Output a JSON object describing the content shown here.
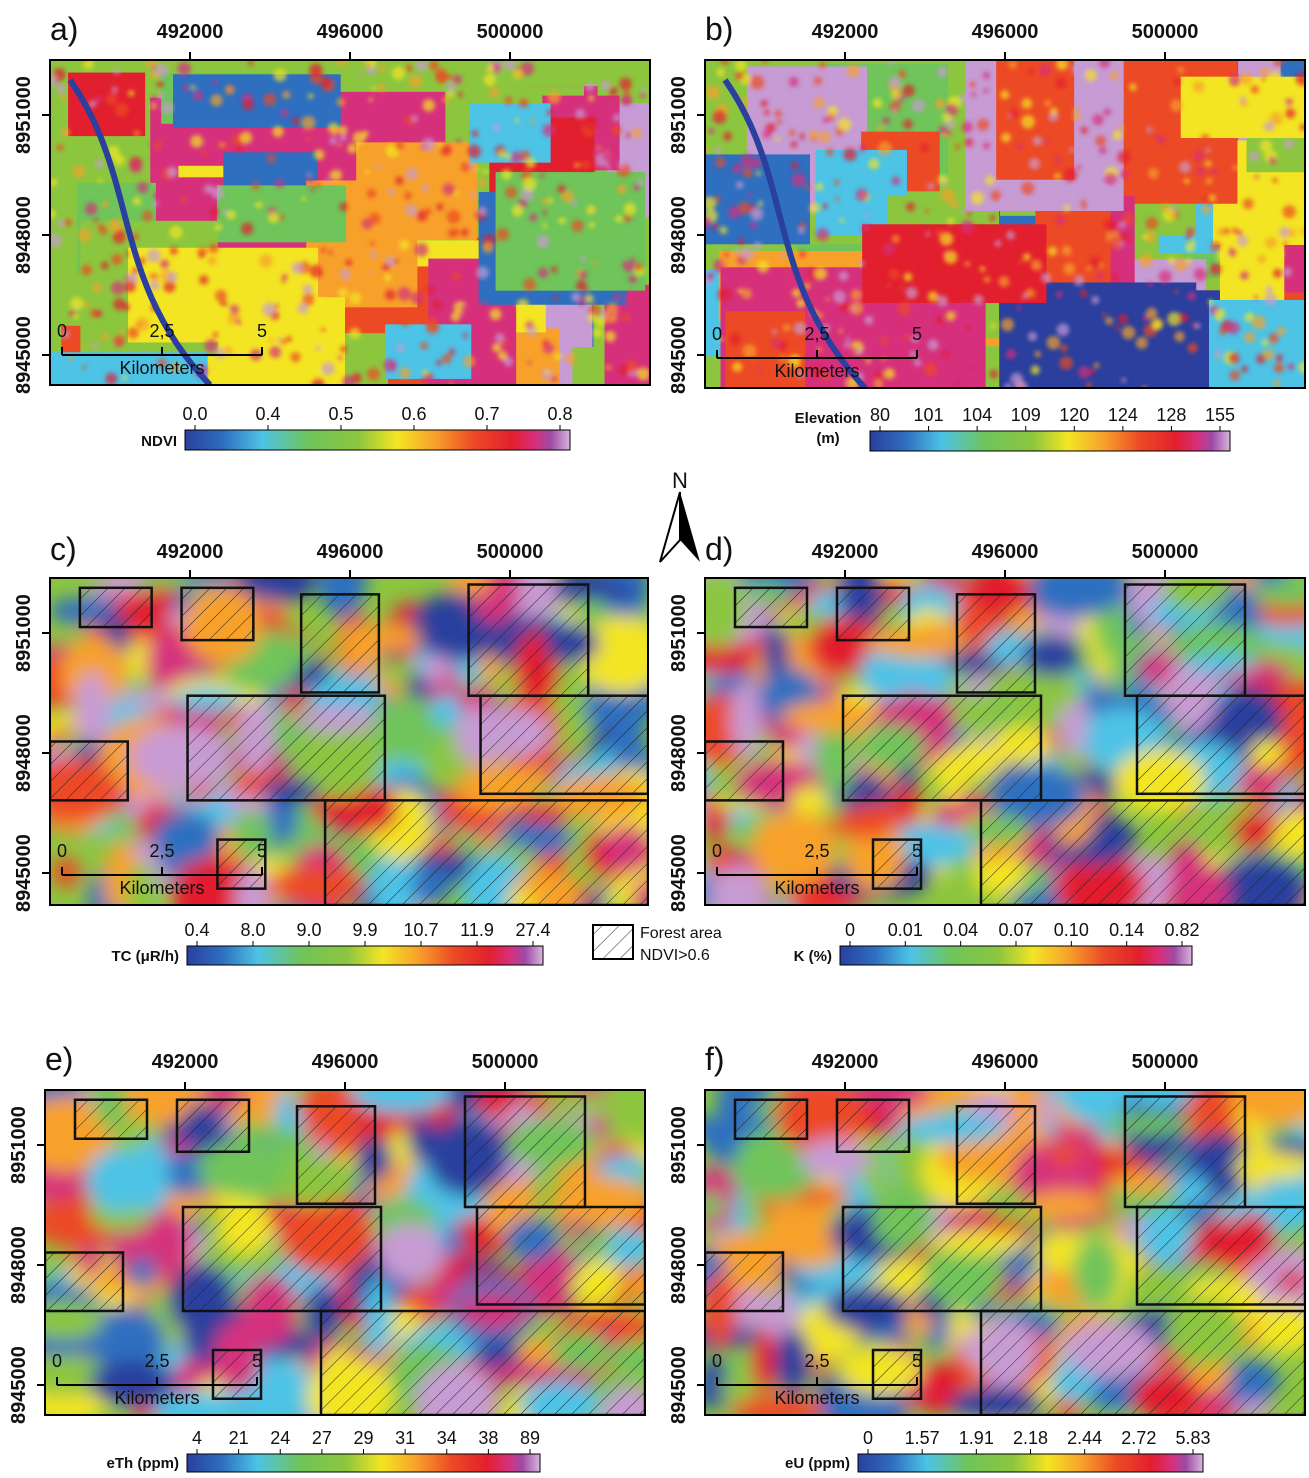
{
  "panels": [
    {
      "label": "a)",
      "x_ticks": [
        "492000",
        "496000",
        "500000"
      ],
      "y_ticks": [
        "8951000",
        "8948000",
        "8945000"
      ],
      "scale": [
        "0",
        "2,5",
        "5"
      ],
      "scale_unit": "Kilometers",
      "colorbar": {
        "title": [
          "NDVI"
        ],
        "ticks": [
          "0.0",
          "0.4",
          "0.5",
          "0.6",
          "0.7",
          "0.8"
        ]
      }
    },
    {
      "label": "b)",
      "x_ticks": [
        "492000",
        "496000",
        "500000"
      ],
      "y_ticks": [
        "8951000",
        "8948000",
        "8945000"
      ],
      "scale": [
        "0",
        "2,5",
        "5"
      ],
      "scale_unit": "Kilometers",
      "colorbar": {
        "title": [
          "Elevation",
          "(m)"
        ],
        "ticks": [
          "80",
          "101",
          "104",
          "109",
          "120",
          "124",
          "128",
          "155"
        ]
      }
    },
    {
      "label": "c)",
      "x_ticks": [
        "492000",
        "496000",
        "500000"
      ],
      "y_ticks": [
        "8951000",
        "8948000",
        "8945000"
      ],
      "scale": [
        "0",
        "2,5",
        "5"
      ],
      "scale_unit": "Kilometers",
      "colorbar": {
        "title": [
          "TC (μR/h)"
        ],
        "ticks": [
          "0.4",
          "8.0",
          "9.0",
          "9.9",
          "10.7",
          "11.9",
          "27.4"
        ]
      }
    },
    {
      "label": "d)",
      "x_ticks": [
        "492000",
        "496000",
        "500000"
      ],
      "y_ticks": [
        "8951000",
        "8948000",
        "8945000"
      ],
      "scale": [
        "0",
        "2,5",
        "5"
      ],
      "scale_unit": "Kilometers",
      "colorbar": {
        "title": [
          "K (%)"
        ],
        "ticks": [
          "0",
          "0.01",
          "0.04",
          "0.07",
          "0.10",
          "0.14",
          "0.82"
        ]
      }
    },
    {
      "label": "e)",
      "x_ticks": [
        "492000",
        "496000",
        "500000"
      ],
      "y_ticks": [
        "8951000",
        "8948000",
        "8945000"
      ],
      "scale": [
        "0",
        "2,5",
        "5"
      ],
      "scale_unit": "Kilometers",
      "colorbar": {
        "title": [
          "eTh (ppm)"
        ],
        "ticks": [
          "4",
          "21",
          "24",
          "27",
          "29",
          "31",
          "34",
          "38",
          "89"
        ]
      }
    },
    {
      "label": "f)",
      "x_ticks": [
        "492000",
        "496000",
        "500000"
      ],
      "y_ticks": [
        "8951000",
        "8948000",
        "8945000"
      ],
      "scale": [
        "0",
        "2,5",
        "5"
      ],
      "scale_unit": "Kilometers",
      "colorbar": {
        "title": [
          "eU (ppm)"
        ],
        "ticks": [
          "0",
          "1.57",
          "1.91",
          "2.18",
          "2.44",
          "2.72",
          "5.83"
        ]
      }
    }
  ],
  "north": "N",
  "legend": [
    "Forest area",
    "NDVI>0.6"
  ]
}
